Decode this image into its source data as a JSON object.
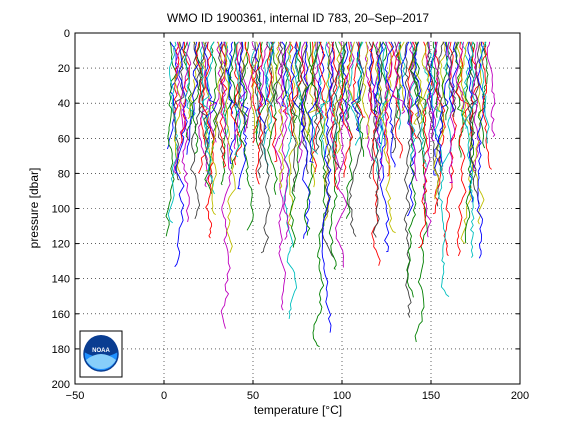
{
  "chart_data": {
    "type": "line",
    "title": "WMO ID 1900361, internal ID 783, 20–Sep–2017",
    "xlabel": "temperature [°C]",
    "ylabel": "pressure [dbar]",
    "xlim": [
      -50,
      200
    ],
    "ylim": [
      200,
      0
    ],
    "y_inverted": true,
    "grid": "dotted",
    "xticks": [
      -50,
      0,
      50,
      100,
      150,
      200
    ],
    "yticks": [
      0,
      20,
      40,
      60,
      80,
      100,
      120,
      140,
      160,
      180,
      200
    ],
    "profile_count": 180,
    "profile_spacing": 1,
    "series_colors": [
      "#0000ff",
      "#008000",
      "#ff0000",
      "#00bfbf",
      "#bf00bf",
      "#bfbf00",
      "#404040"
    ],
    "logo": {
      "name": "noaa-logo",
      "text": "NOAA"
    }
  }
}
